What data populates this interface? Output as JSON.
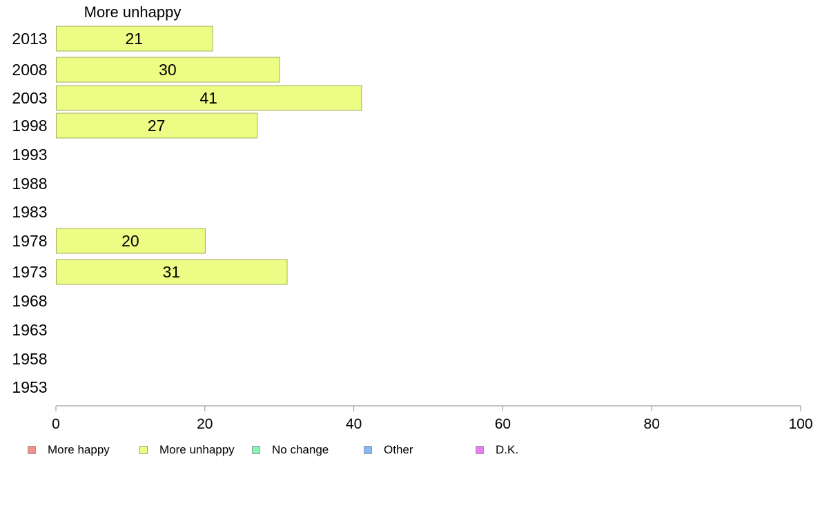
{
  "chart_data": {
    "type": "bar",
    "orientation": "horizontal",
    "title": "More unhappy",
    "categories": [
      "2013",
      "2008",
      "2003",
      "1998",
      "1993",
      "1988",
      "1983",
      "1978",
      "1973",
      "1968",
      "1963",
      "1958",
      "1953"
    ],
    "series": [
      {
        "name": "More unhappy",
        "color": "#ecfc85",
        "values": [
          21,
          30,
          41,
          27,
          null,
          null,
          null,
          20,
          31,
          null,
          null,
          null,
          null
        ],
        "labels": [
          "21",
          "30",
          "41",
          "27",
          "",
          "",
          "",
          "20",
          "31",
          "",
          "",
          "",
          ""
        ]
      }
    ],
    "xaxis": {
      "ticks": [
        "0",
        "20",
        "40",
        "60",
        "80",
        "100"
      ],
      "range": [
        0,
        100
      ]
    },
    "grid": false,
    "legend_position": "bottom",
    "legend": [
      {
        "label": "More happy",
        "color": "#f4908a"
      },
      {
        "label": "More unhappy",
        "color": "#ecfc85"
      },
      {
        "label": "No change",
        "color": "#86f5b4"
      },
      {
        "label": "Other",
        "color": "#88b8f4"
      },
      {
        "label": "D.K.",
        "color": "#ea7ef0"
      }
    ]
  }
}
